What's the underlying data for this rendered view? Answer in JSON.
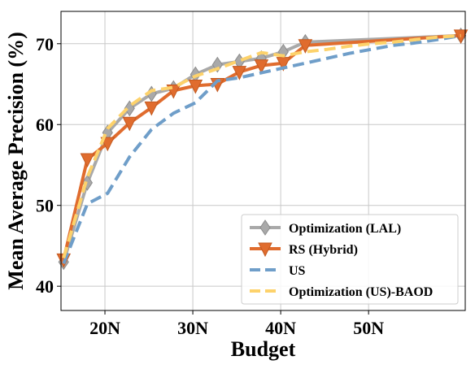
{
  "chart_data": {
    "type": "line",
    "xlabel": "Budget",
    "ylabel": "Mean Average Precision (%)",
    "xlim": [
      15,
      61
    ],
    "ylim": [
      37,
      74
    ],
    "x_ticks": [
      {
        "value": 20,
        "label": "20N"
      },
      {
        "value": 30,
        "label": "30N"
      },
      {
        "value": 40,
        "label": "40N"
      },
      {
        "value": 50,
        "label": "50N"
      }
    ],
    "y_ticks": [
      {
        "value": 40,
        "label": "40"
      },
      {
        "value": 50,
        "label": "50"
      },
      {
        "value": 60,
        "label": "60"
      },
      {
        "value": 70,
        "label": "70"
      }
    ],
    "grid": true,
    "legend_position": "bottom-right",
    "series": [
      {
        "name": "Optimization (LAL)",
        "color": "#a9a9a9",
        "marker": "diamond",
        "dash": "solid",
        "points": [
          [
            15.3,
            43.0
          ],
          [
            18.0,
            52.8
          ],
          [
            20.3,
            59.0
          ],
          [
            22.8,
            62.0
          ],
          [
            25.3,
            63.8
          ],
          [
            27.8,
            64.5
          ],
          [
            30.3,
            66.2
          ],
          [
            32.8,
            67.4
          ],
          [
            35.3,
            67.8
          ],
          [
            37.8,
            68.2
          ],
          [
            40.3,
            69.0
          ],
          [
            42.8,
            70.2
          ],
          [
            60.5,
            71.0
          ]
        ]
      },
      {
        "name": "RS (Hybrid)",
        "color": "#e06c2e",
        "marker": "triangle-down",
        "dash": "solid",
        "points": [
          [
            15.3,
            43.3
          ],
          [
            18.0,
            55.7
          ],
          [
            20.3,
            57.7
          ],
          [
            22.8,
            60.2
          ],
          [
            25.3,
            62.1
          ],
          [
            27.8,
            64.2
          ],
          [
            30.3,
            64.8
          ],
          [
            32.8,
            65.0
          ],
          [
            35.3,
            66.5
          ],
          [
            37.8,
            67.3
          ],
          [
            40.3,
            67.6
          ],
          [
            42.8,
            69.8
          ],
          [
            60.5,
            71.0
          ]
        ]
      },
      {
        "name": "US",
        "color": "#6f9ec9",
        "marker": "none",
        "dash": "dashed",
        "points": [
          [
            15.3,
            42.8
          ],
          [
            18.0,
            50.2
          ],
          [
            20.3,
            51.5
          ],
          [
            22.8,
            56.0
          ],
          [
            25.3,
            59.4
          ],
          [
            27.8,
            61.4
          ],
          [
            30.3,
            62.7
          ],
          [
            32.8,
            65.4
          ],
          [
            35.3,
            65.8
          ],
          [
            37.8,
            66.4
          ],
          [
            40.3,
            67.0
          ],
          [
            42.8,
            67.6
          ],
          [
            45.3,
            68.2
          ],
          [
            47.8,
            68.8
          ],
          [
            50.3,
            69.3
          ],
          [
            52.8,
            69.8
          ],
          [
            55.3,
            70.1
          ],
          [
            57.8,
            70.5
          ],
          [
            60.5,
            71.0
          ]
        ]
      },
      {
        "name": "Optimization (US)-BAOD",
        "color": "#fdd26b",
        "marker": "none",
        "dash": "dashed",
        "points": [
          [
            15.3,
            43.5
          ],
          [
            18.0,
            53.5
          ],
          [
            20.3,
            59.5
          ],
          [
            22.8,
            62.3
          ],
          [
            25.3,
            64.2
          ],
          [
            27.8,
            64.6
          ],
          [
            30.3,
            66.0
          ],
          [
            32.8,
            66.9
          ],
          [
            35.3,
            67.9
          ],
          [
            37.8,
            68.9
          ],
          [
            40.3,
            68.5
          ],
          [
            42.8,
            69.0
          ],
          [
            45.3,
            69.3
          ],
          [
            47.8,
            69.7
          ],
          [
            50.3,
            70.0
          ],
          [
            52.8,
            70.2
          ],
          [
            55.3,
            70.5
          ],
          [
            57.8,
            70.8
          ],
          [
            60.5,
            71.0
          ]
        ]
      }
    ]
  }
}
